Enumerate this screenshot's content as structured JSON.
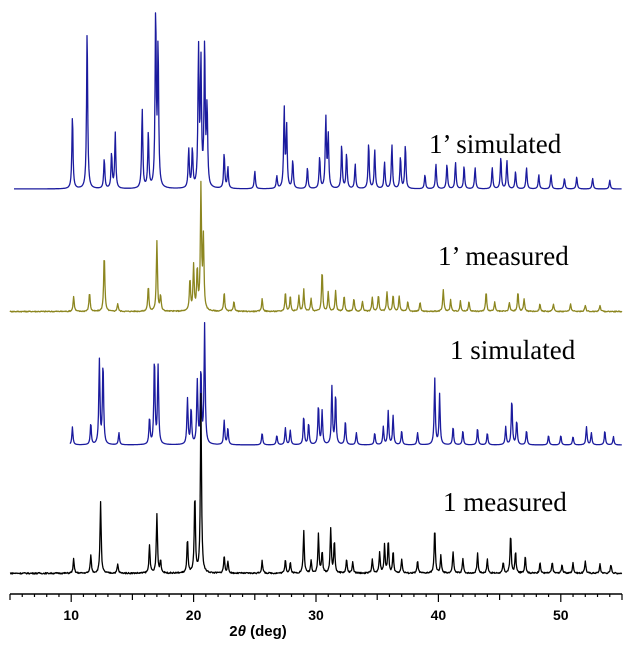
{
  "chart_data": {
    "type": "line",
    "xlabel": {
      "prefix": "2",
      "theta": "θ",
      "suffix": " (deg)"
    },
    "xlim": [
      5,
      55
    ],
    "xticks": [
      10,
      20,
      30,
      40,
      50
    ],
    "xtick_labels": [
      "10",
      "20",
      "30",
      "40",
      "50"
    ],
    "grid": false,
    "series": [
      {
        "name": "1’ simulated",
        "color": "#1b1b9e",
        "peaks": [
          [
            10.1,
            0.42
          ],
          [
            11.3,
            0.92
          ],
          [
            12.7,
            0.17
          ],
          [
            13.3,
            0.2
          ],
          [
            13.6,
            0.32
          ],
          [
            15.8,
            0.45
          ],
          [
            16.3,
            0.32
          ],
          [
            16.9,
            1.0
          ],
          [
            17.1,
            0.8
          ],
          [
            19.6,
            0.22
          ],
          [
            19.9,
            0.22
          ],
          [
            20.4,
            0.78
          ],
          [
            20.6,
            0.7
          ],
          [
            20.9,
            0.82
          ],
          [
            21.1,
            0.45
          ],
          [
            22.5,
            0.2
          ],
          [
            22.8,
            0.12
          ],
          [
            25.0,
            0.1
          ],
          [
            26.8,
            0.07
          ],
          [
            27.4,
            0.45
          ],
          [
            27.6,
            0.35
          ],
          [
            28.1,
            0.16
          ],
          [
            29.3,
            0.12
          ],
          [
            30.3,
            0.18
          ],
          [
            30.8,
            0.4
          ],
          [
            31.0,
            0.3
          ],
          [
            32.1,
            0.25
          ],
          [
            32.5,
            0.2
          ],
          [
            33.2,
            0.14
          ],
          [
            34.3,
            0.26
          ],
          [
            34.8,
            0.22
          ],
          [
            35.6,
            0.15
          ],
          [
            36.2,
            0.25
          ],
          [
            36.9,
            0.18
          ],
          [
            37.3,
            0.25
          ],
          [
            38.9,
            0.08
          ],
          [
            39.8,
            0.14
          ],
          [
            40.7,
            0.14
          ],
          [
            41.4,
            0.15
          ],
          [
            42.1,
            0.13
          ],
          [
            43.0,
            0.12
          ],
          [
            44.4,
            0.12
          ],
          [
            45.1,
            0.18
          ],
          [
            45.6,
            0.16
          ],
          [
            46.3,
            0.1
          ],
          [
            47.2,
            0.12
          ],
          [
            48.2,
            0.08
          ],
          [
            49.2,
            0.08
          ],
          [
            50.3,
            0.06
          ],
          [
            51.3,
            0.07
          ],
          [
            52.6,
            0.06
          ],
          [
            54.0,
            0.05
          ]
        ]
      },
      {
        "name": "1’ measured",
        "color": "#8c8620",
        "peaks": [
          [
            10.2,
            0.12
          ],
          [
            11.5,
            0.15
          ],
          [
            12.7,
            0.45
          ],
          [
            13.8,
            0.06
          ],
          [
            16.3,
            0.2
          ],
          [
            17.0,
            0.55
          ],
          [
            17.3,
            0.12
          ],
          [
            19.7,
            0.25
          ],
          [
            20.0,
            0.35
          ],
          [
            20.3,
            0.32
          ],
          [
            20.6,
            1.0
          ],
          [
            20.8,
            0.55
          ],
          [
            22.5,
            0.15
          ],
          [
            23.3,
            0.08
          ],
          [
            25.6,
            0.1
          ],
          [
            27.5,
            0.15
          ],
          [
            27.9,
            0.12
          ],
          [
            28.6,
            0.12
          ],
          [
            29.0,
            0.17
          ],
          [
            29.6,
            0.1
          ],
          [
            30.5,
            0.32
          ],
          [
            31.0,
            0.15
          ],
          [
            31.6,
            0.16
          ],
          [
            32.3,
            0.12
          ],
          [
            33.1,
            0.1
          ],
          [
            33.8,
            0.08
          ],
          [
            34.6,
            0.11
          ],
          [
            35.1,
            0.13
          ],
          [
            35.8,
            0.15
          ],
          [
            36.3,
            0.13
          ],
          [
            36.8,
            0.12
          ],
          [
            37.5,
            0.08
          ],
          [
            38.5,
            0.07
          ],
          [
            40.4,
            0.17
          ],
          [
            41.0,
            0.09
          ],
          [
            41.8,
            0.08
          ],
          [
            42.5,
            0.08
          ],
          [
            43.9,
            0.15
          ],
          [
            44.6,
            0.07
          ],
          [
            45.8,
            0.07
          ],
          [
            46.5,
            0.15
          ],
          [
            47.0,
            0.1
          ],
          [
            48.3,
            0.06
          ],
          [
            49.4,
            0.06
          ],
          [
            50.8,
            0.06
          ],
          [
            52.0,
            0.05
          ],
          [
            53.2,
            0.05
          ]
        ]
      },
      {
        "name": "1 simulated",
        "color": "#1b1b9e",
        "peaks": [
          [
            10.1,
            0.15
          ],
          [
            11.6,
            0.18
          ],
          [
            12.3,
            0.7
          ],
          [
            12.6,
            0.68
          ],
          [
            13.9,
            0.1
          ],
          [
            16.4,
            0.22
          ],
          [
            16.8,
            0.72
          ],
          [
            17.1,
            0.65
          ],
          [
            19.5,
            0.38
          ],
          [
            19.8,
            0.3
          ],
          [
            20.3,
            0.52
          ],
          [
            20.6,
            0.62
          ],
          [
            20.9,
            1.0
          ],
          [
            22.5,
            0.2
          ],
          [
            22.8,
            0.14
          ],
          [
            25.6,
            0.1
          ],
          [
            26.8,
            0.08
          ],
          [
            27.5,
            0.14
          ],
          [
            27.9,
            0.12
          ],
          [
            29.0,
            0.24
          ],
          [
            29.4,
            0.18
          ],
          [
            30.2,
            0.33
          ],
          [
            30.5,
            0.28
          ],
          [
            31.3,
            0.48
          ],
          [
            31.6,
            0.42
          ],
          [
            32.4,
            0.2
          ],
          [
            33.3,
            0.1
          ],
          [
            34.8,
            0.1
          ],
          [
            35.5,
            0.15
          ],
          [
            35.9,
            0.28
          ],
          [
            36.3,
            0.24
          ],
          [
            37.0,
            0.12
          ],
          [
            38.3,
            0.1
          ],
          [
            39.7,
            0.55
          ],
          [
            40.1,
            0.42
          ],
          [
            41.2,
            0.15
          ],
          [
            42.0,
            0.12
          ],
          [
            43.2,
            0.14
          ],
          [
            44.0,
            0.1
          ],
          [
            45.5,
            0.15
          ],
          [
            46.0,
            0.38
          ],
          [
            46.4,
            0.2
          ],
          [
            47.2,
            0.12
          ],
          [
            49.0,
            0.08
          ],
          [
            50.0,
            0.08
          ],
          [
            51.0,
            0.07
          ],
          [
            52.1,
            0.15
          ],
          [
            52.5,
            0.1
          ],
          [
            53.6,
            0.12
          ],
          [
            54.3,
            0.07
          ]
        ]
      },
      {
        "name": "1 measured",
        "color": "#000000",
        "peaks": [
          [
            10.2,
            0.08
          ],
          [
            11.6,
            0.1
          ],
          [
            12.4,
            0.4
          ],
          [
            13.8,
            0.05
          ],
          [
            16.4,
            0.16
          ],
          [
            17.0,
            0.33
          ],
          [
            17.3,
            0.07
          ],
          [
            19.5,
            0.19
          ],
          [
            20.1,
            0.44
          ],
          [
            20.6,
            1.0
          ],
          [
            22.5,
            0.1
          ],
          [
            22.8,
            0.06
          ],
          [
            25.6,
            0.07
          ],
          [
            27.5,
            0.08
          ],
          [
            27.9,
            0.06
          ],
          [
            29.0,
            0.24
          ],
          [
            29.6,
            0.07
          ],
          [
            30.2,
            0.22
          ],
          [
            30.5,
            0.12
          ],
          [
            31.2,
            0.25
          ],
          [
            31.5,
            0.18
          ],
          [
            32.5,
            0.08
          ],
          [
            33.0,
            0.06
          ],
          [
            34.6,
            0.08
          ],
          [
            35.2,
            0.12
          ],
          [
            35.6,
            0.16
          ],
          [
            35.9,
            0.18
          ],
          [
            36.3,
            0.12
          ],
          [
            37.0,
            0.08
          ],
          [
            38.3,
            0.07
          ],
          [
            39.7,
            0.25
          ],
          [
            40.2,
            0.1
          ],
          [
            41.2,
            0.12
          ],
          [
            42.0,
            0.08
          ],
          [
            43.2,
            0.11
          ],
          [
            44.0,
            0.08
          ],
          [
            45.3,
            0.06
          ],
          [
            45.9,
            0.22
          ],
          [
            46.3,
            0.12
          ],
          [
            47.1,
            0.1
          ],
          [
            48.3,
            0.06
          ],
          [
            49.3,
            0.06
          ],
          [
            50.1,
            0.05
          ],
          [
            51.0,
            0.06
          ],
          [
            52.0,
            0.07
          ],
          [
            53.2,
            0.05
          ],
          [
            54.1,
            0.05
          ]
        ]
      }
    ]
  }
}
